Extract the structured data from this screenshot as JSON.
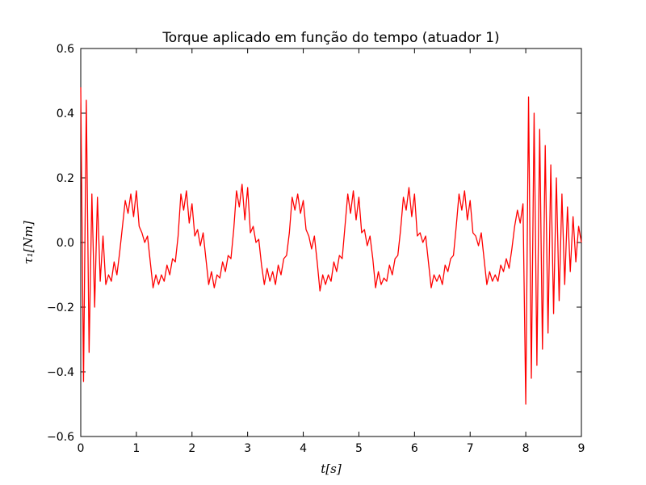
{
  "chart_data": {
    "type": "line",
    "title": "Torque aplicado em função do tempo (atuador 1)",
    "x_label": "t[s]",
    "y_label": "τ₁[Nm]",
    "xlim": [
      0,
      9
    ],
    "ylim": [
      -0.6,
      0.6
    ],
    "xticks": [
      0,
      1,
      2,
      3,
      4,
      5,
      6,
      7,
      8,
      9
    ],
    "yticks": [
      {
        "value": -0.6,
        "label": "−0.6"
      },
      {
        "value": -0.4,
        "label": "−0.4"
      },
      {
        "value": -0.2,
        "label": "−0.2"
      },
      {
        "value": 0,
        "label": "0.0"
      },
      0.2,
      0.4,
      0.6
    ],
    "x": [
      0,
      0.05,
      0.1,
      0.15,
      0.2,
      0.25,
      0.3,
      0.35,
      0.4,
      0.45,
      0.5,
      0.55,
      0.6,
      0.65,
      0.7,
      0.75,
      0.8,
      0.85,
      0.9,
      0.95,
      1,
      1.05,
      1.1,
      1.15,
      1.2,
      1.25,
      1.3,
      1.35,
      1.4,
      1.45,
      1.5,
      1.55,
      1.6,
      1.65,
      1.7,
      1.75,
      1.8,
      1.85,
      1.9,
      1.95,
      2,
      2.05,
      2.1,
      2.15,
      2.2,
      2.25,
      2.3,
      2.35,
      2.4,
      2.45,
      2.5,
      2.55,
      2.6,
      2.65,
      2.7,
      2.75,
      2.8,
      2.85,
      2.9,
      2.95,
      3,
      3.05,
      3.1,
      3.15,
      3.2,
      3.25,
      3.3,
      3.35,
      3.4,
      3.45,
      3.5,
      3.55,
      3.6,
      3.65,
      3.7,
      3.75,
      3.8,
      3.85,
      3.9,
      3.95,
      4,
      4.05,
      4.1,
      4.15,
      4.2,
      4.25,
      4.3,
      4.35,
      4.4,
      4.45,
      4.5,
      4.55,
      4.6,
      4.65,
      4.7,
      4.75,
      4.8,
      4.85,
      4.9,
      4.95,
      5,
      5.05,
      5.1,
      5.15,
      5.2,
      5.25,
      5.3,
      5.35,
      5.4,
      5.45,
      5.5,
      5.55,
      5.6,
      5.65,
      5.7,
      5.75,
      5.8,
      5.85,
      5.9,
      5.95,
      6,
      6.05,
      6.1,
      6.15,
      6.2,
      6.25,
      6.3,
      6.35,
      6.4,
      6.45,
      6.5,
      6.55,
      6.6,
      6.65,
      6.7,
      6.75,
      6.8,
      6.85,
      6.9,
      6.95,
      7,
      7.05,
      7.1,
      7.15,
      7.2,
      7.25,
      7.3,
      7.35,
      7.4,
      7.45,
      7.5,
      7.55,
      7.6,
      7.65,
      7.7,
      7.75,
      7.8,
      7.85,
      7.9,
      7.95,
      8,
      8.05,
      8.1,
      8.15,
      8.2,
      8.25,
      8.3,
      8.35,
      8.4,
      8.45,
      8.5,
      8.55,
      8.6,
      8.65,
      8.7,
      8.75,
      8.8,
      8.85,
      8.9,
      8.95,
      9
    ],
    "series": [
      {
        "color": "#ff0000",
        "values": [
          0.48,
          -0.43,
          0.44,
          -0.34,
          0.15,
          -0.2,
          0.14,
          -0.12,
          0.02,
          -0.13,
          -0.1,
          -0.12,
          -0.06,
          -0.1,
          -0.03,
          0.05,
          0.13,
          0.09,
          0.15,
          0.08,
          0.16,
          0.05,
          0.03,
          0.0,
          0.02,
          -0.06,
          -0.14,
          -0.1,
          -0.13,
          -0.1,
          -0.12,
          -0.07,
          -0.1,
          -0.05,
          -0.06,
          0.02,
          0.15,
          0.1,
          0.16,
          0.06,
          0.12,
          0.02,
          0.04,
          -0.01,
          0.03,
          -0.05,
          -0.13,
          -0.09,
          -0.14,
          -0.1,
          -0.11,
          -0.06,
          -0.09,
          -0.04,
          -0.05,
          0.04,
          0.16,
          0.11,
          0.18,
          0.07,
          0.17,
          0.03,
          0.05,
          0.0,
          0.01,
          -0.07,
          -0.13,
          -0.08,
          -0.12,
          -0.09,
          -0.13,
          -0.07,
          -0.1,
          -0.05,
          -0.04,
          0.03,
          0.14,
          0.1,
          0.15,
          0.09,
          0.13,
          0.04,
          0.02,
          -0.02,
          0.02,
          -0.06,
          -0.15,
          -0.1,
          -0.13,
          -0.1,
          -0.12,
          -0.06,
          -0.09,
          -0.04,
          -0.05,
          0.05,
          0.15,
          0.09,
          0.16,
          0.07,
          0.14,
          0.03,
          0.04,
          -0.01,
          0.02,
          -0.05,
          -0.14,
          -0.09,
          -0.13,
          -0.11,
          -0.12,
          -0.07,
          -0.1,
          -0.05,
          -0.04,
          0.04,
          0.14,
          0.1,
          0.17,
          0.08,
          0.15,
          0.02,
          0.03,
          0.0,
          0.02,
          -0.06,
          -0.14,
          -0.1,
          -0.12,
          -0.1,
          -0.13,
          -0.07,
          -0.09,
          -0.05,
          -0.04,
          0.05,
          0.15,
          0.1,
          0.16,
          0.07,
          0.13,
          0.03,
          0.02,
          -0.01,
          0.03,
          -0.05,
          -0.13,
          -0.09,
          -0.12,
          -0.1,
          -0.12,
          -0.07,
          -0.09,
          -0.05,
          -0.08,
          -0.02,
          0.05,
          0.1,
          0.06,
          0.12,
          -0.5,
          0.45,
          -0.42,
          0.4,
          -0.38,
          0.35,
          -0.33,
          0.3,
          -0.28,
          0.24,
          -0.22,
          0.2,
          -0.18,
          0.15,
          -0.13,
          0.11,
          -0.09,
          0.08,
          -0.06,
          0.05,
          0.0
        ]
      }
    ]
  }
}
